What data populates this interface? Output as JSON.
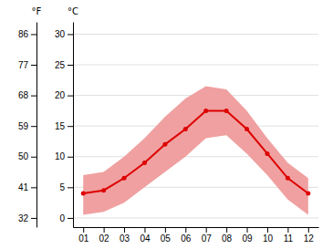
{
  "chart_data": {
    "type": "line",
    "x": [
      1,
      2,
      3,
      4,
      5,
      6,
      7,
      8,
      9,
      10,
      11,
      12
    ],
    "xlim": [
      0.5,
      12.5
    ],
    "xticks": [
      {
        "value": 1,
        "label": "01"
      },
      {
        "value": 2,
        "label": "02"
      },
      {
        "value": 3,
        "label": "03"
      },
      {
        "value": 4,
        "label": "04"
      },
      {
        "value": 5,
        "label": "05"
      },
      {
        "value": 6,
        "label": "06"
      },
      {
        "value": 7,
        "label": "07"
      },
      {
        "value": 8,
        "label": "08"
      },
      {
        "value": 9,
        "label": "09"
      },
      {
        "value": 10,
        "label": "10"
      },
      {
        "value": 11,
        "label": "11"
      },
      {
        "value": 12,
        "label": "12"
      }
    ],
    "ylabel": "°C",
    "ylim": [
      -1.5,
      32
    ],
    "yticks": [
      0,
      5,
      10,
      15,
      20,
      25,
      30
    ],
    "y2label": "°F",
    "y2lim": [
      29.3,
      89.6
    ],
    "y2ticks": [
      32,
      41,
      50,
      59,
      68,
      77,
      86
    ],
    "grid": true,
    "series": [
      {
        "type": "area",
        "color": "#f0a0a0",
        "values": [
          7.0,
          7.5,
          10.0,
          13.0,
          16.5,
          19.5,
          21.5,
          21.0,
          17.5,
          13.0,
          9.0,
          6.5
        ],
        "low": [
          0.5,
          1.0,
          2.5,
          5.0,
          7.5,
          10.0,
          13.0,
          13.5,
          10.5,
          7.0,
          3.0,
          0.5
        ]
      },
      {
        "type": "line",
        "color": "#dd0000",
        "marker": "circle",
        "values": [
          4.0,
          4.5,
          6.5,
          9.0,
          12.0,
          14.5,
          17.5,
          17.5,
          14.5,
          10.5,
          6.5,
          4.0
        ]
      }
    ]
  }
}
